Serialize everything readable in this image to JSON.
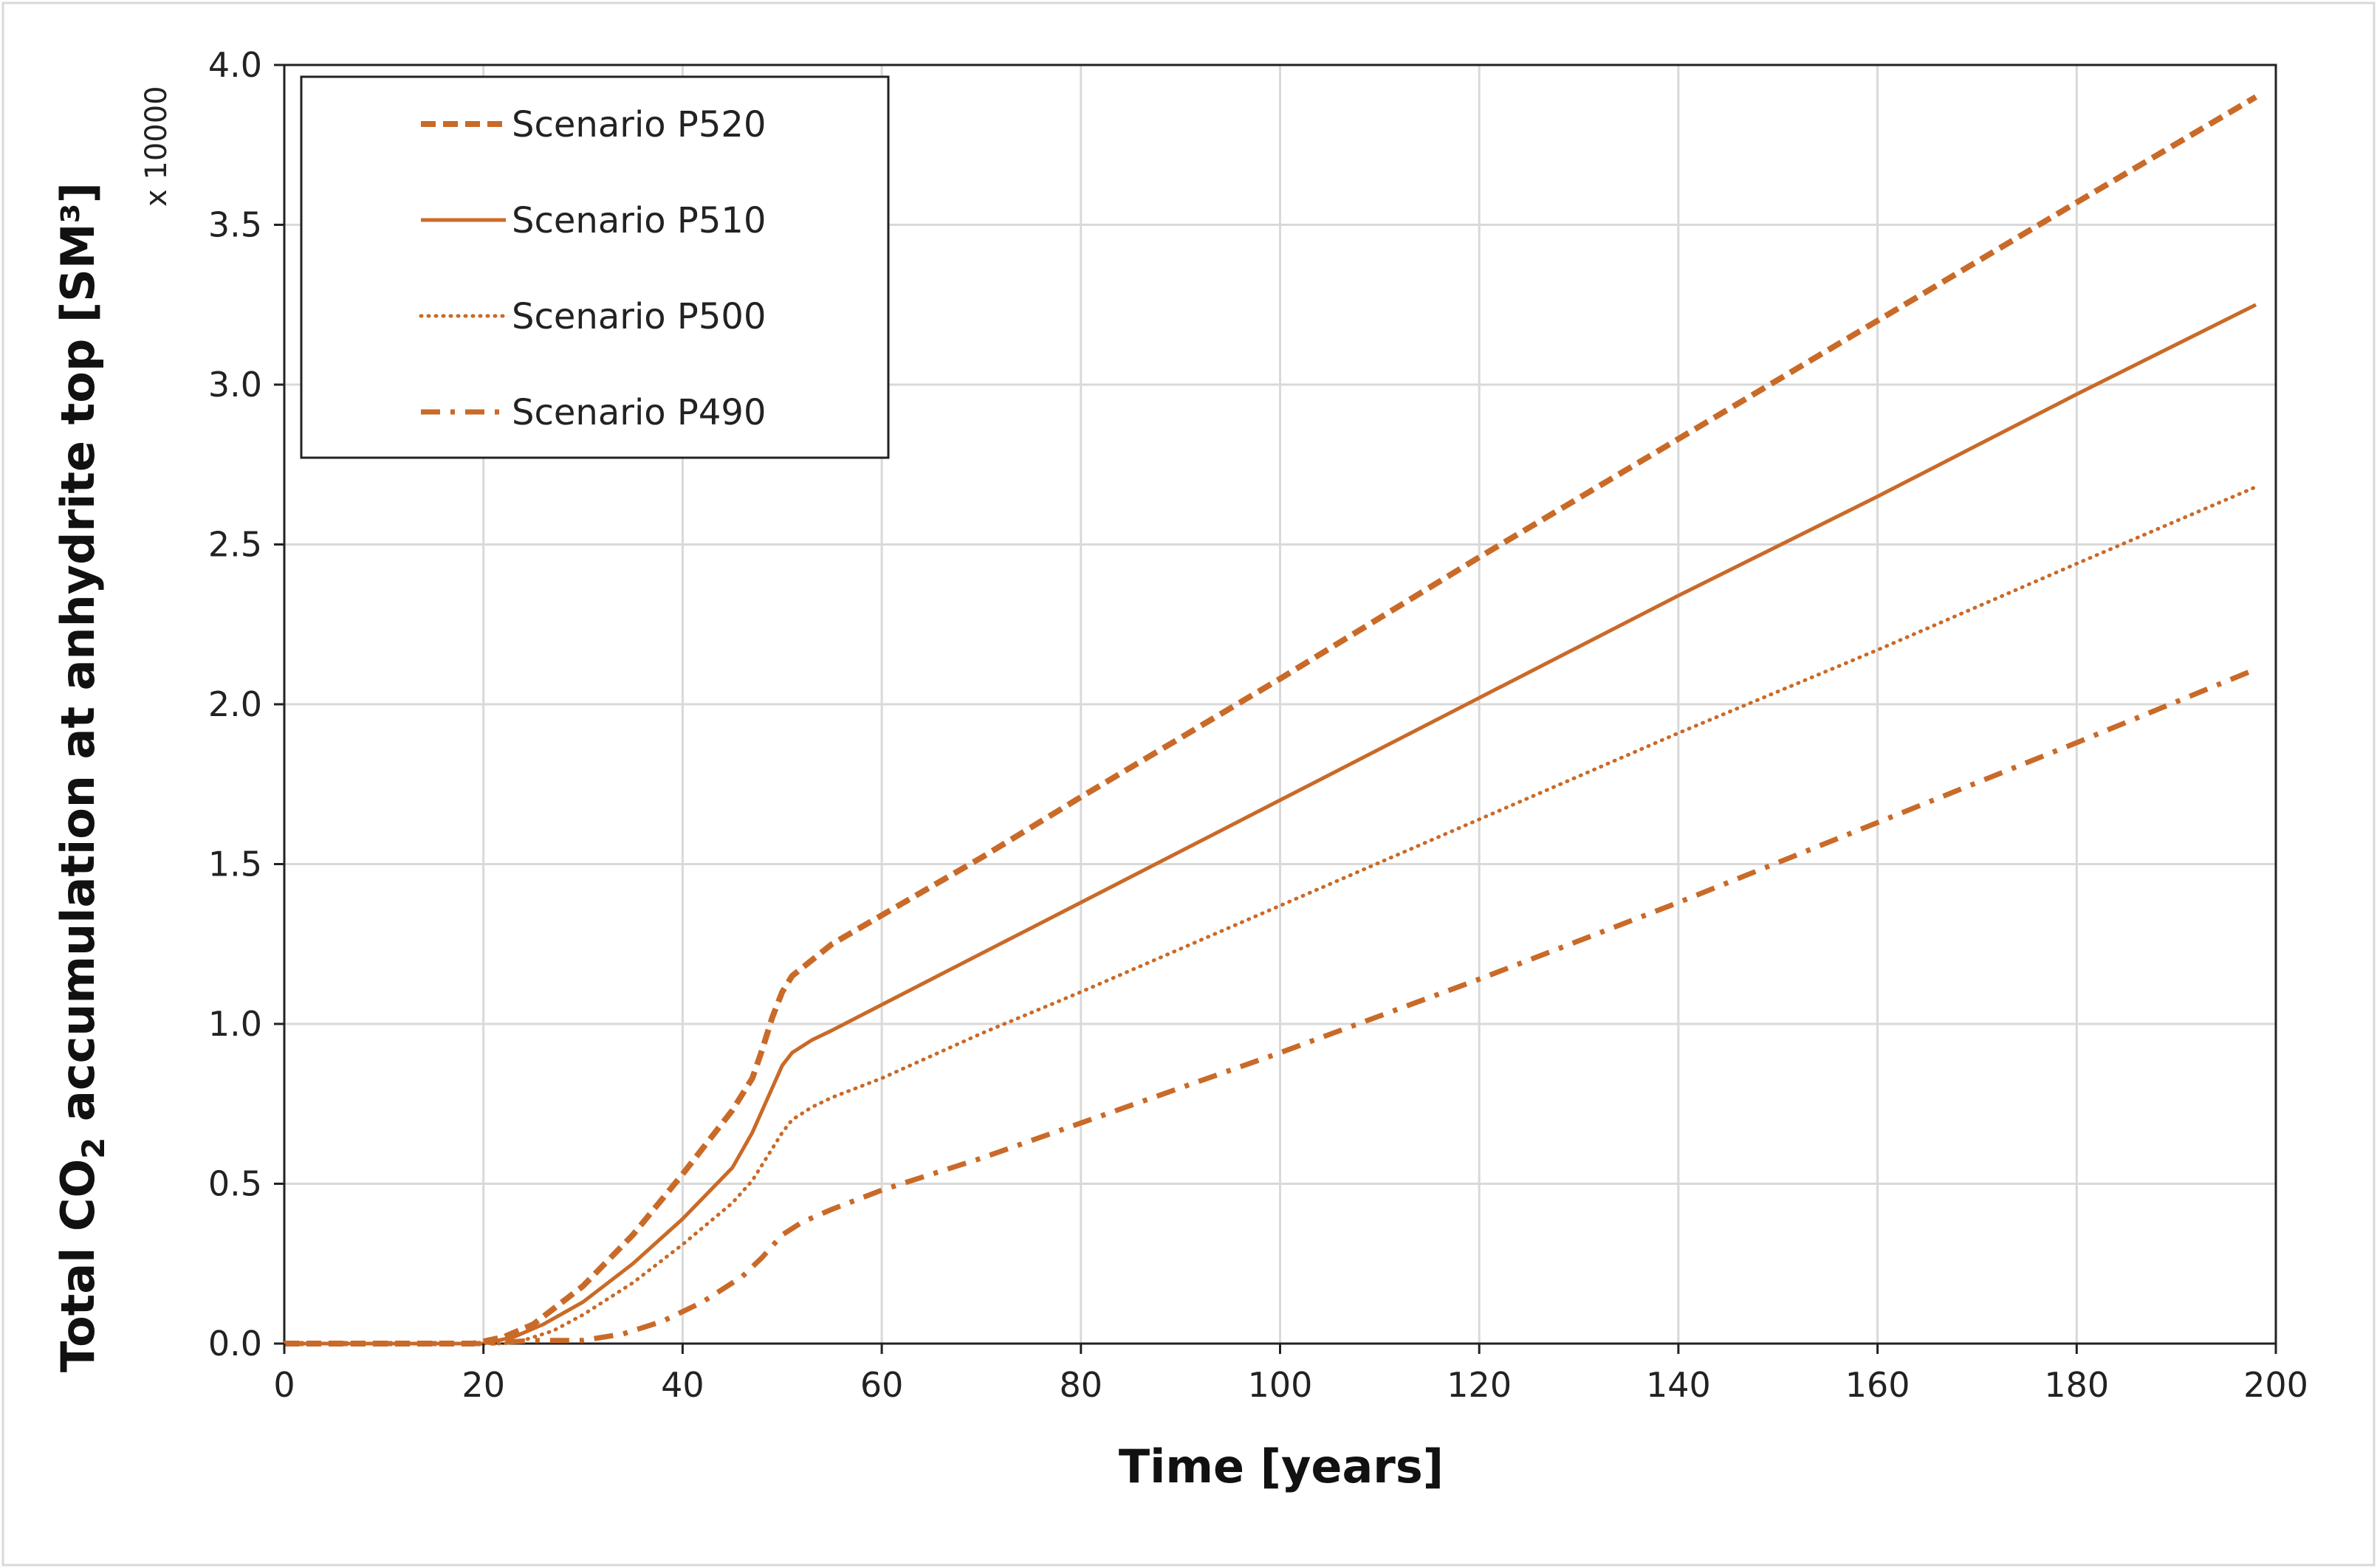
{
  "chart_data": {
    "type": "line",
    "xlabel": "Time [years]",
    "ylabel_parts": [
      "Total CO",
      "2",
      " accumulation at anhydrite top  [SM³]"
    ],
    "y_multiplier": "x 10000",
    "xlim": [
      0,
      200
    ],
    "ylim": [
      0,
      4.0
    ],
    "x_ticks": [
      "0",
      "20",
      "40",
      "60",
      "80",
      "100",
      "120",
      "140",
      "160",
      "180",
      "200"
    ],
    "y_ticks": [
      "0.0",
      "0.5",
      "1.0",
      "1.5",
      "2.0",
      "2.5",
      "3.0",
      "3.5",
      "4.0"
    ],
    "grid": true,
    "legend_position": "top-left",
    "line_color": "#C96A28",
    "series": [
      {
        "name": "Scenario P520",
        "dash": "dashed",
        "points": [
          [
            0,
            0
          ],
          [
            10,
            0
          ],
          [
            19,
            0
          ],
          [
            22,
            0.02
          ],
          [
            25,
            0.06
          ],
          [
            30,
            0.18
          ],
          [
            35,
            0.34
          ],
          [
            40,
            0.53
          ],
          [
            45,
            0.73
          ],
          [
            47,
            0.83
          ],
          [
            48,
            0.92
          ],
          [
            49,
            1.02
          ],
          [
            50,
            1.1
          ],
          [
            51,
            1.15
          ],
          [
            53,
            1.2
          ],
          [
            55,
            1.25
          ],
          [
            60,
            1.34
          ],
          [
            70,
            1.52
          ],
          [
            80,
            1.71
          ],
          [
            100,
            2.08
          ],
          [
            120,
            2.46
          ],
          [
            140,
            2.83
          ],
          [
            160,
            3.2
          ],
          [
            180,
            3.57
          ],
          [
            198,
            3.9
          ]
        ]
      },
      {
        "name": "Scenario P510",
        "dash": "solid",
        "points": [
          [
            0,
            0
          ],
          [
            10,
            0
          ],
          [
            20,
            0
          ],
          [
            23,
            0.02
          ],
          [
            26,
            0.06
          ],
          [
            30,
            0.13
          ],
          [
            35,
            0.25
          ],
          [
            40,
            0.39
          ],
          [
            45,
            0.55
          ],
          [
            47,
            0.66
          ],
          [
            49,
            0.8
          ],
          [
            50,
            0.87
          ],
          [
            51,
            0.91
          ],
          [
            53,
            0.95
          ],
          [
            55,
            0.98
          ],
          [
            60,
            1.06
          ],
          [
            70,
            1.22
          ],
          [
            80,
            1.38
          ],
          [
            100,
            1.7
          ],
          [
            120,
            2.02
          ],
          [
            140,
            2.34
          ],
          [
            160,
            2.65
          ],
          [
            180,
            2.97
          ],
          [
            198,
            3.25
          ]
        ]
      },
      {
        "name": "Scenario P500",
        "dash": "dotted",
        "points": [
          [
            0,
            0
          ],
          [
            10,
            0
          ],
          [
            22,
            0
          ],
          [
            24,
            0.01
          ],
          [
            27,
            0.04
          ],
          [
            30,
            0.09
          ],
          [
            35,
            0.19
          ],
          [
            40,
            0.31
          ],
          [
            45,
            0.44
          ],
          [
            47,
            0.51
          ],
          [
            49,
            0.61
          ],
          [
            50,
            0.66
          ],
          [
            51,
            0.7
          ],
          [
            53,
            0.74
          ],
          [
            55,
            0.77
          ],
          [
            60,
            0.83
          ],
          [
            70,
            0.97
          ],
          [
            80,
            1.1
          ],
          [
            100,
            1.37
          ],
          [
            120,
            1.64
          ],
          [
            140,
            1.91
          ],
          [
            160,
            2.17
          ],
          [
            180,
            2.44
          ],
          [
            198,
            2.68
          ]
        ]
      },
      {
        "name": "Scenario P490",
        "dash": "dashdot",
        "points": [
          [
            0,
            0
          ],
          [
            10,
            0
          ],
          [
            20,
            0
          ],
          [
            25,
            0.01
          ],
          [
            30,
            0.01
          ],
          [
            34,
            0.03
          ],
          [
            38,
            0.07
          ],
          [
            42,
            0.13
          ],
          [
            46,
            0.21
          ],
          [
            48,
            0.27
          ],
          [
            50,
            0.34
          ],
          [
            52,
            0.38
          ],
          [
            55,
            0.42
          ],
          [
            60,
            0.48
          ],
          [
            70,
            0.58
          ],
          [
            80,
            0.69
          ],
          [
            100,
            0.91
          ],
          [
            120,
            1.14
          ],
          [
            140,
            1.38
          ],
          [
            160,
            1.63
          ],
          [
            180,
            1.88
          ],
          [
            198,
            2.11
          ]
        ]
      }
    ]
  }
}
